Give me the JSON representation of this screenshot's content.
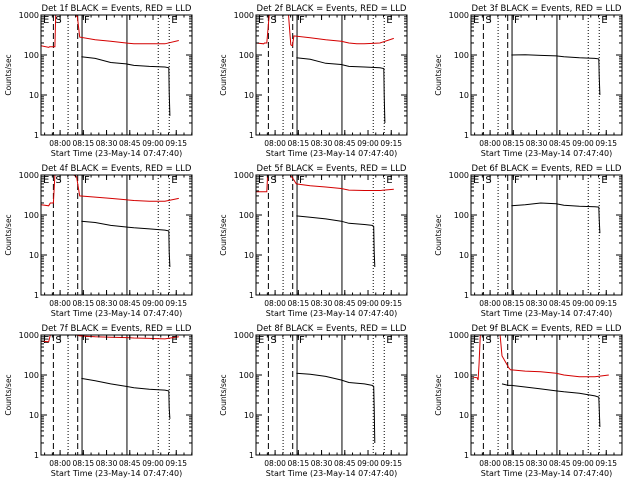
{
  "colors": {
    "events": "#000000",
    "lld": "#d40000",
    "axis": "#000000",
    "background": "#ffffff"
  },
  "shared": {
    "ylabel": "Counts/sec",
    "xlabel": "Start Time (23-May-14 07:47:40)",
    "y_ticks": [
      1,
      10,
      100,
      1000
    ],
    "y_tick_labels": [
      "1",
      "10",
      "100",
      "1000"
    ],
    "y_scale": "log",
    "x_ticks_min": [
      12.33,
      27.33,
      42.33,
      57.33,
      72.33,
      87.33
    ],
    "x_tick_labels": [
      "08:00",
      "08:15",
      "08:30",
      "08:45",
      "09:00",
      "09:15"
    ],
    "xlim_min": [
      0,
      97.5
    ],
    "ylim": [
      1,
      1000
    ],
    "markers": [
      {
        "label": "E",
        "t": 0,
        "style": "dotted"
      },
      {
        "label": "S",
        "t": 8,
        "style": "dashed"
      },
      {
        "label": "",
        "t": 17.5,
        "style": "dotted"
      },
      {
        "label": "",
        "t": 23.7,
        "style": "dashed"
      },
      {
        "label": "F",
        "t": 26.5,
        "style": "solid"
      },
      {
        "label": "",
        "t": 55.5,
        "style": "solid"
      },
      {
        "label": "",
        "t": 75.7,
        "style": "dotted"
      },
      {
        "label": "E",
        "t": 82.8,
        "style": "dotted"
      }
    ]
  },
  "chart_data": [
    {
      "type": "line",
      "title": "Det 1f BLACK = Events, RED = LLD",
      "series": [
        {
          "role": "lld",
          "x": [
            0,
            5,
            5.5,
            9,
            9.5,
            13,
            14,
            22,
            23.5,
            25,
            35,
            45,
            55,
            60,
            70,
            80,
            89
          ],
          "values": [
            170,
            155,
            160,
            160,
            1000,
            1000,
            1000,
            1000,
            900,
            280,
            240,
            220,
            200,
            190,
            190,
            190,
            230
          ]
        },
        {
          "role": "events",
          "x": [
            26,
            35,
            45,
            55,
            60,
            70,
            80,
            82.5,
            82.8,
            83.2
          ],
          "values": [
            90,
            82,
            65,
            60,
            55,
            52,
            50,
            48,
            12,
            3
          ]
        }
      ]
    },
    {
      "type": "line",
      "title": "Det 2f BLACK = Events, RED = LLD",
      "series": [
        {
          "role": "lld",
          "x": [
            0,
            5,
            5.5,
            7,
            8.5,
            10,
            11,
            21,
            22.5,
            23.5,
            24.5,
            35,
            45,
            55,
            60,
            65,
            70,
            80,
            89
          ],
          "values": [
            200,
            190,
            200,
            200,
            1000,
            1000,
            1000,
            1000,
            180,
            170,
            300,
            270,
            240,
            220,
            200,
            190,
            190,
            200,
            260
          ]
        },
        {
          "role": "events",
          "x": [
            26,
            35,
            45,
            55,
            60,
            70,
            80,
            82.5,
            82.8,
            83.2
          ],
          "values": [
            85,
            78,
            62,
            58,
            52,
            50,
            48,
            46,
            10,
            2
          ]
        }
      ]
    },
    {
      "type": "line",
      "title": "Det 3f BLACK = Events, RED = LLD",
      "series": [
        {
          "role": "events",
          "x": [
            26,
            35,
            45,
            55,
            60,
            70,
            80,
            82.5,
            82.8,
            83.2
          ],
          "values": [
            100,
            102,
            98,
            95,
            90,
            85,
            82,
            80,
            30,
            10
          ]
        }
      ]
    },
    {
      "type": "line",
      "title": "Det 4f BLACK = Events, RED = LLD",
      "series": [
        {
          "role": "lld",
          "x": [
            0,
            5,
            6,
            8,
            9,
            13,
            14,
            21,
            23,
            25,
            35,
            45,
            55,
            60,
            70,
            80,
            89
          ],
          "values": [
            180,
            170,
            200,
            200,
            1000,
            1000,
            1000,
            1000,
            900,
            300,
            280,
            260,
            240,
            230,
            220,
            220,
            260
          ]
        },
        {
          "role": "events",
          "x": [
            26,
            35,
            45,
            55,
            60,
            70,
            80,
            82.5,
            82.8,
            83.2
          ],
          "values": [
            70,
            65,
            55,
            50,
            48,
            45,
            42,
            40,
            12,
            5
          ]
        }
      ]
    },
    {
      "type": "line",
      "title": "Det 5f BLACK = Events, RED = LLD",
      "series": [
        {
          "role": "lld",
          "x": [
            0,
            7,
            7.5,
            8.5,
            9,
            21,
            22,
            24,
            26,
            35,
            45,
            55,
            60,
            70,
            80,
            89
          ],
          "values": [
            380,
            380,
            1000,
            1000,
            1000,
            1000,
            1000,
            800,
            600,
            540,
            500,
            460,
            420,
            410,
            410,
            440
          ]
        },
        {
          "role": "events",
          "x": [
            26,
            35,
            45,
            55,
            60,
            70,
            75,
            76,
            76.3,
            76.7
          ],
          "values": [
            95,
            88,
            80,
            70,
            62,
            58,
            55,
            52,
            12,
            5
          ]
        }
      ]
    },
    {
      "type": "line",
      "title": "Det 6f BLACK = Events, RED = LLD",
      "series": [
        {
          "role": "events",
          "x": [
            26,
            35,
            45,
            55,
            60,
            70,
            80,
            82.5,
            82.8,
            83.2
          ],
          "values": [
            170,
            180,
            200,
            190,
            175,
            165,
            160,
            158,
            80,
            35
          ]
        }
      ]
    },
    {
      "type": "line",
      "title": "Det 7f BLACK = Events, RED = LLD",
      "series": [
        {
          "role": "lld",
          "x": [
            0,
            5,
            6,
            8,
            9,
            13,
            14,
            21,
            23,
            25,
            35,
            45,
            55,
            60,
            70,
            80,
            89
          ],
          "values": [
            700,
            680,
            1000,
            1000,
            1000,
            1000,
            1000,
            1000,
            1000,
            950,
            900,
            880,
            860,
            840,
            820,
            800,
            900
          ]
        },
        {
          "role": "events",
          "x": [
            26,
            35,
            45,
            55,
            60,
            70,
            80,
            82.5,
            82.8,
            83.2
          ],
          "values": [
            82,
            72,
            60,
            52,
            48,
            44,
            42,
            40,
            15,
            8
          ]
        }
      ]
    },
    {
      "type": "line",
      "title": "Det 8f BLACK = Events, RED = LLD",
      "series": [
        {
          "role": "lld",
          "x": [
            0,
            10,
            20,
            30,
            40,
            50,
            60,
            70,
            80,
            89
          ],
          "values": [
            1000,
            1000,
            1000,
            1000,
            1000,
            1000,
            1000,
            1000,
            1000,
            1000
          ]
        },
        {
          "role": "events",
          "x": [
            26,
            35,
            45,
            55,
            60,
            70,
            75,
            76,
            76.3,
            76.7
          ],
          "values": [
            110,
            105,
            92,
            75,
            65,
            60,
            55,
            52,
            15,
            2
          ]
        }
      ]
    },
    {
      "type": "line",
      "title": "Det 9f BLACK = Events, RED = LLD",
      "series": [
        {
          "role": "lld",
          "x": [
            0,
            4,
            4.6,
            5.2,
            6,
            11,
            13,
            14,
            18.8,
            20,
            24.5,
            25.5,
            35,
            45,
            55,
            60,
            70,
            80,
            89
          ],
          "values": [
            90,
            85,
            75,
            200,
            1000,
            1000,
            1000,
            1000,
            1000,
            300,
            150,
            135,
            125,
            120,
            110,
            100,
            90,
            90,
            100
          ]
        },
        {
          "role": "events",
          "x": [
            20,
            24,
            26,
            35,
            45,
            55,
            60,
            70,
            80,
            82.5,
            82.8,
            83.2
          ],
          "values": [
            60,
            55,
            55,
            50,
            45,
            40,
            38,
            35,
            30,
            28,
            15,
            5
          ]
        }
      ]
    }
  ]
}
